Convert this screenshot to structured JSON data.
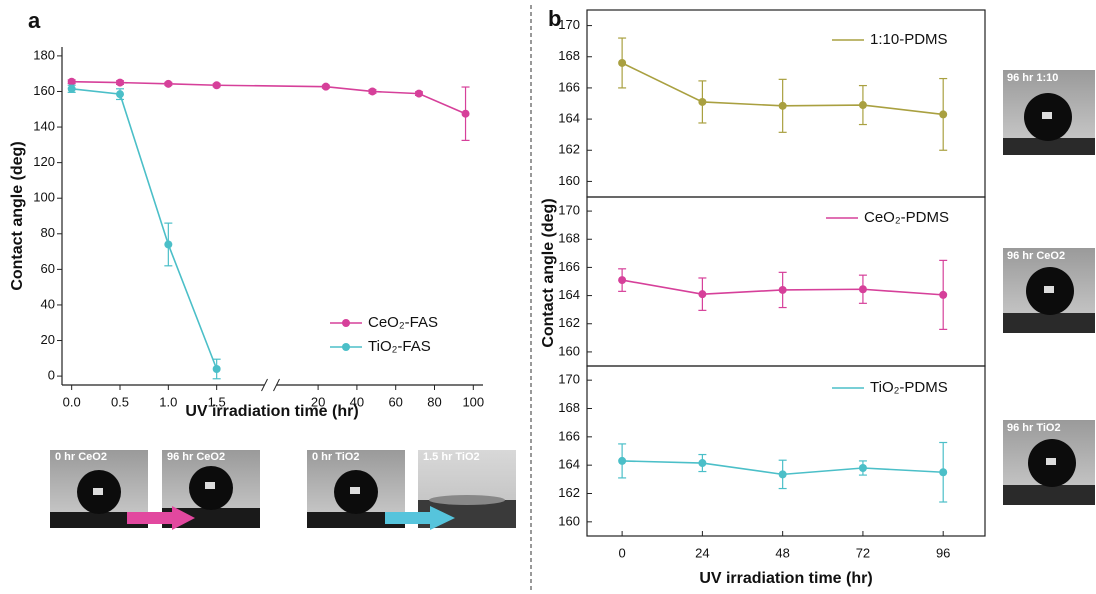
{
  "chart_data": [
    {
      "type": "line",
      "panel_label": "a",
      "x_label": "UV irradiation time (hr)",
      "y_label": "Contact angle (deg)",
      "xlim": [
        -0.1,
        105
      ],
      "x_break": [
        1.7,
        5
      ],
      "xticks": [
        {
          "value": 0,
          "label": "0.0"
        },
        0.5,
        {
          "value": 1,
          "label": "1.0"
        },
        1.5,
        20,
        40,
        60,
        80,
        100
      ],
      "ylim": [
        -5,
        185
      ],
      "yticks": [
        0,
        20,
        40,
        60,
        80,
        100,
        120,
        140,
        160,
        180
      ],
      "legend": "lower right",
      "series": [
        {
          "name": "CeO₂-FAS",
          "color": "#d6409a",
          "x": [
            0,
            0.5,
            1,
            1.5,
            24,
            48,
            72,
            96
          ],
          "values": [
            165.5,
            165,
            164.3,
            163.5,
            162.7,
            160,
            158.8,
            147.5
          ],
          "errors": [
            1,
            1,
            0.8,
            0.8,
            0.8,
            1,
            1,
            15
          ]
        },
        {
          "name": "TiO₂-FAS",
          "color": "#4bbfc8",
          "x": [
            0,
            0.5,
            1,
            1.5
          ],
          "values": [
            161.5,
            158.5,
            74,
            4
          ],
          "errors": [
            2,
            3,
            12,
            5.5
          ]
        }
      ]
    },
    {
      "type": "line",
      "panel_label": "b",
      "x": [
        0,
        24,
        48,
        72,
        96
      ],
      "xlim": [
        -10.5,
        108.5
      ],
      "ylim": [
        159,
        171
      ],
      "yticks": [
        160,
        162,
        164,
        166,
        168,
        170
      ],
      "legend": "upper right",
      "series": [
        {
          "name": "1:10-PDMS",
          "color": "#a9a040",
          "values": [
            167.6,
            165.1,
            164.85,
            164.9,
            164.3
          ],
          "errors": [
            1.6,
            1.35,
            1.7,
            1.25,
            2.3
          ]
        }
      ]
    },
    {
      "type": "line",
      "y_label": "Contact angle (deg)",
      "x": [
        0,
        24,
        48,
        72,
        96
      ],
      "xlim": [
        -10.5,
        108.5
      ],
      "ylim": [
        159,
        171
      ],
      "yticks": [
        160,
        162,
        164,
        166,
        168,
        170
      ],
      "legend": "upper right",
      "series": [
        {
          "name": "CeO₂-PDMS",
          "color": "#d6409a",
          "values": [
            165.1,
            164.1,
            164.4,
            164.45,
            164.05
          ],
          "errors": [
            0.8,
            1.15,
            1.25,
            1.0,
            2.45
          ]
        }
      ]
    },
    {
      "type": "line",
      "x_label": "UV irradiation time (hr)",
      "x": [
        0,
        24,
        48,
        72,
        96
      ],
      "xlim": [
        -10.5,
        108.5
      ],
      "xticks": [
        0,
        24,
        48,
        72,
        96
      ],
      "ylim": [
        159,
        171
      ],
      "yticks": [
        160,
        162,
        164,
        166,
        168,
        170
      ],
      "legend": "upper right",
      "series": [
        {
          "name": "TiO₂-PDMS",
          "color": "#4bbfc8",
          "values": [
            164.3,
            164.15,
            163.35,
            163.8,
            163.5
          ],
          "errors": [
            1.2,
            0.6,
            1.0,
            0.5,
            2.1
          ]
        }
      ]
    }
  ],
  "photos": [
    {
      "caption": "0 hr  CeO2"
    },
    {
      "caption": "96 hr CeO2"
    },
    {
      "caption": "0 hr  TiO2"
    },
    {
      "caption": "1.5 hr TiO2"
    },
    {
      "caption": "96 hr 1:10"
    },
    {
      "caption": "96 hr CeO2"
    },
    {
      "caption": "96 hr TiO2"
    }
  ]
}
